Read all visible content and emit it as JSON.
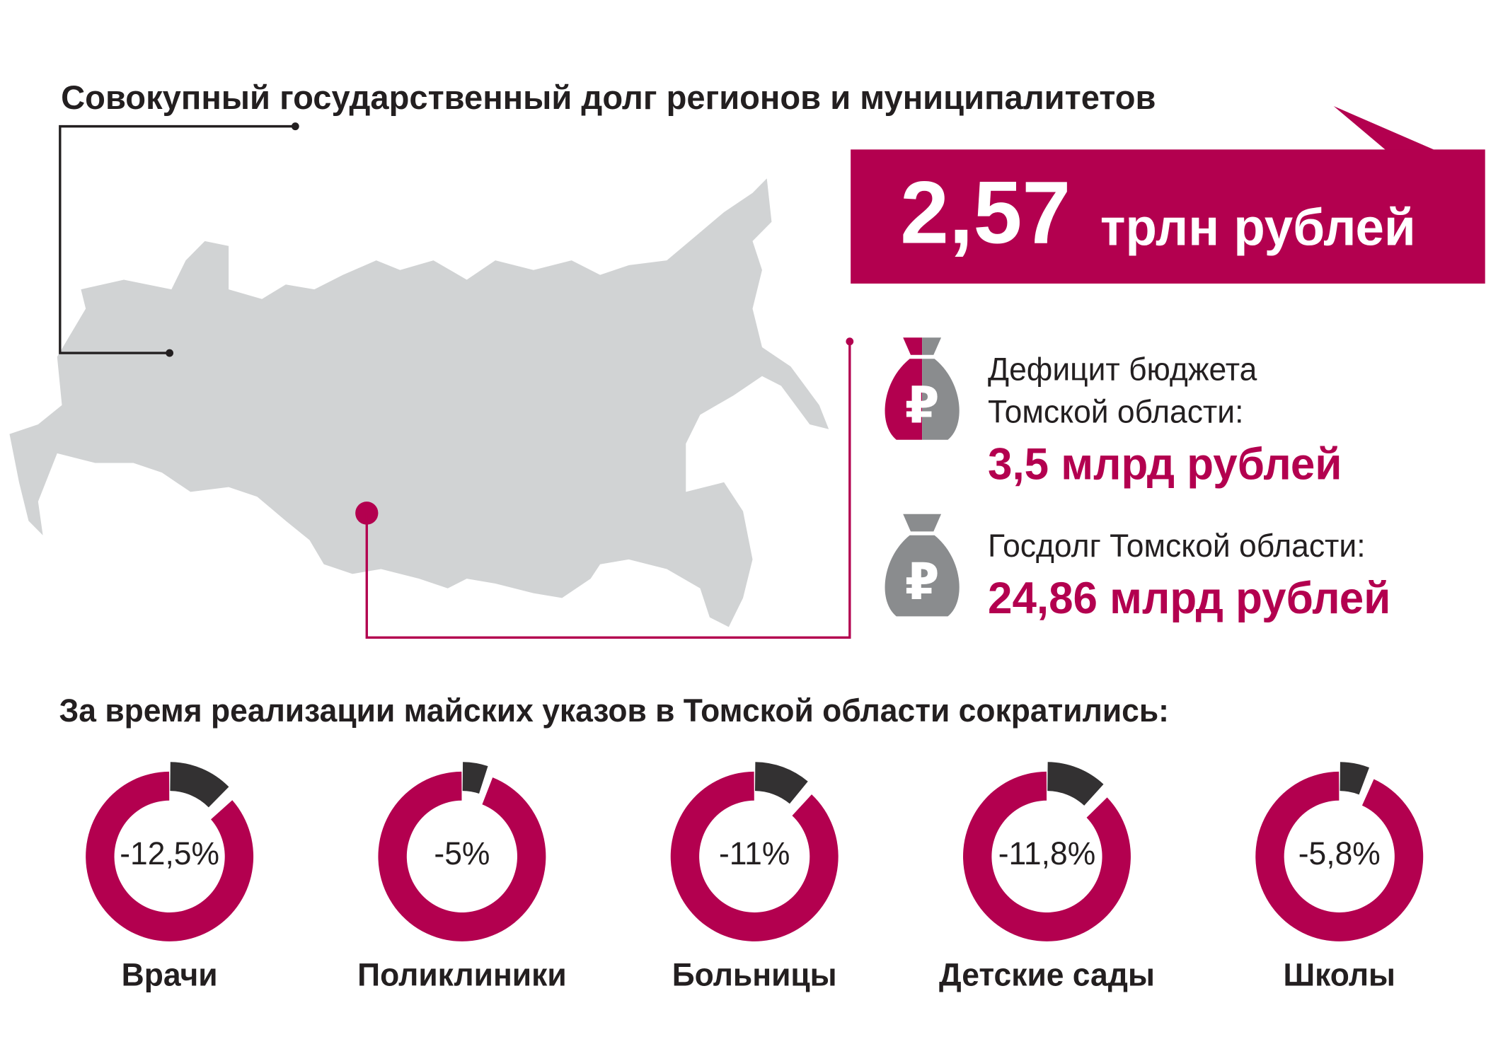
{
  "title": "Совокупный государственный долг регионов и муниципалитетов",
  "total": {
    "value": "2,57",
    "unit": "трлн рублей"
  },
  "deficit": {
    "label_line1": "Дефицит бюджета",
    "label_line2": "Томской области:",
    "value": "3,5 млрд рублей"
  },
  "debt": {
    "label": "Госдолг Томской области:",
    "value": "24,86 млрд рублей"
  },
  "subtitle": "За время реализации майских указов в Томской области сократились:",
  "colors": {
    "accent": "#b3004f",
    "dark": "#333132",
    "map": "#d1d3d4",
    "bag_gray": "#8a8c8e"
  },
  "chart_data": {
    "type": "pie",
    "title": "За время реализации майских указов в Томской области сократились:",
    "categories": [
      "Врачи",
      "Поликлиники",
      "Больницы",
      "Детские сады",
      "Школы"
    ],
    "values": [
      -12.5,
      -5,
      -11,
      -11.8,
      -5.8
    ],
    "labels": [
      "-12,5%",
      "-5%",
      "-11%",
      "-11,8%",
      "-5,8%"
    ]
  }
}
